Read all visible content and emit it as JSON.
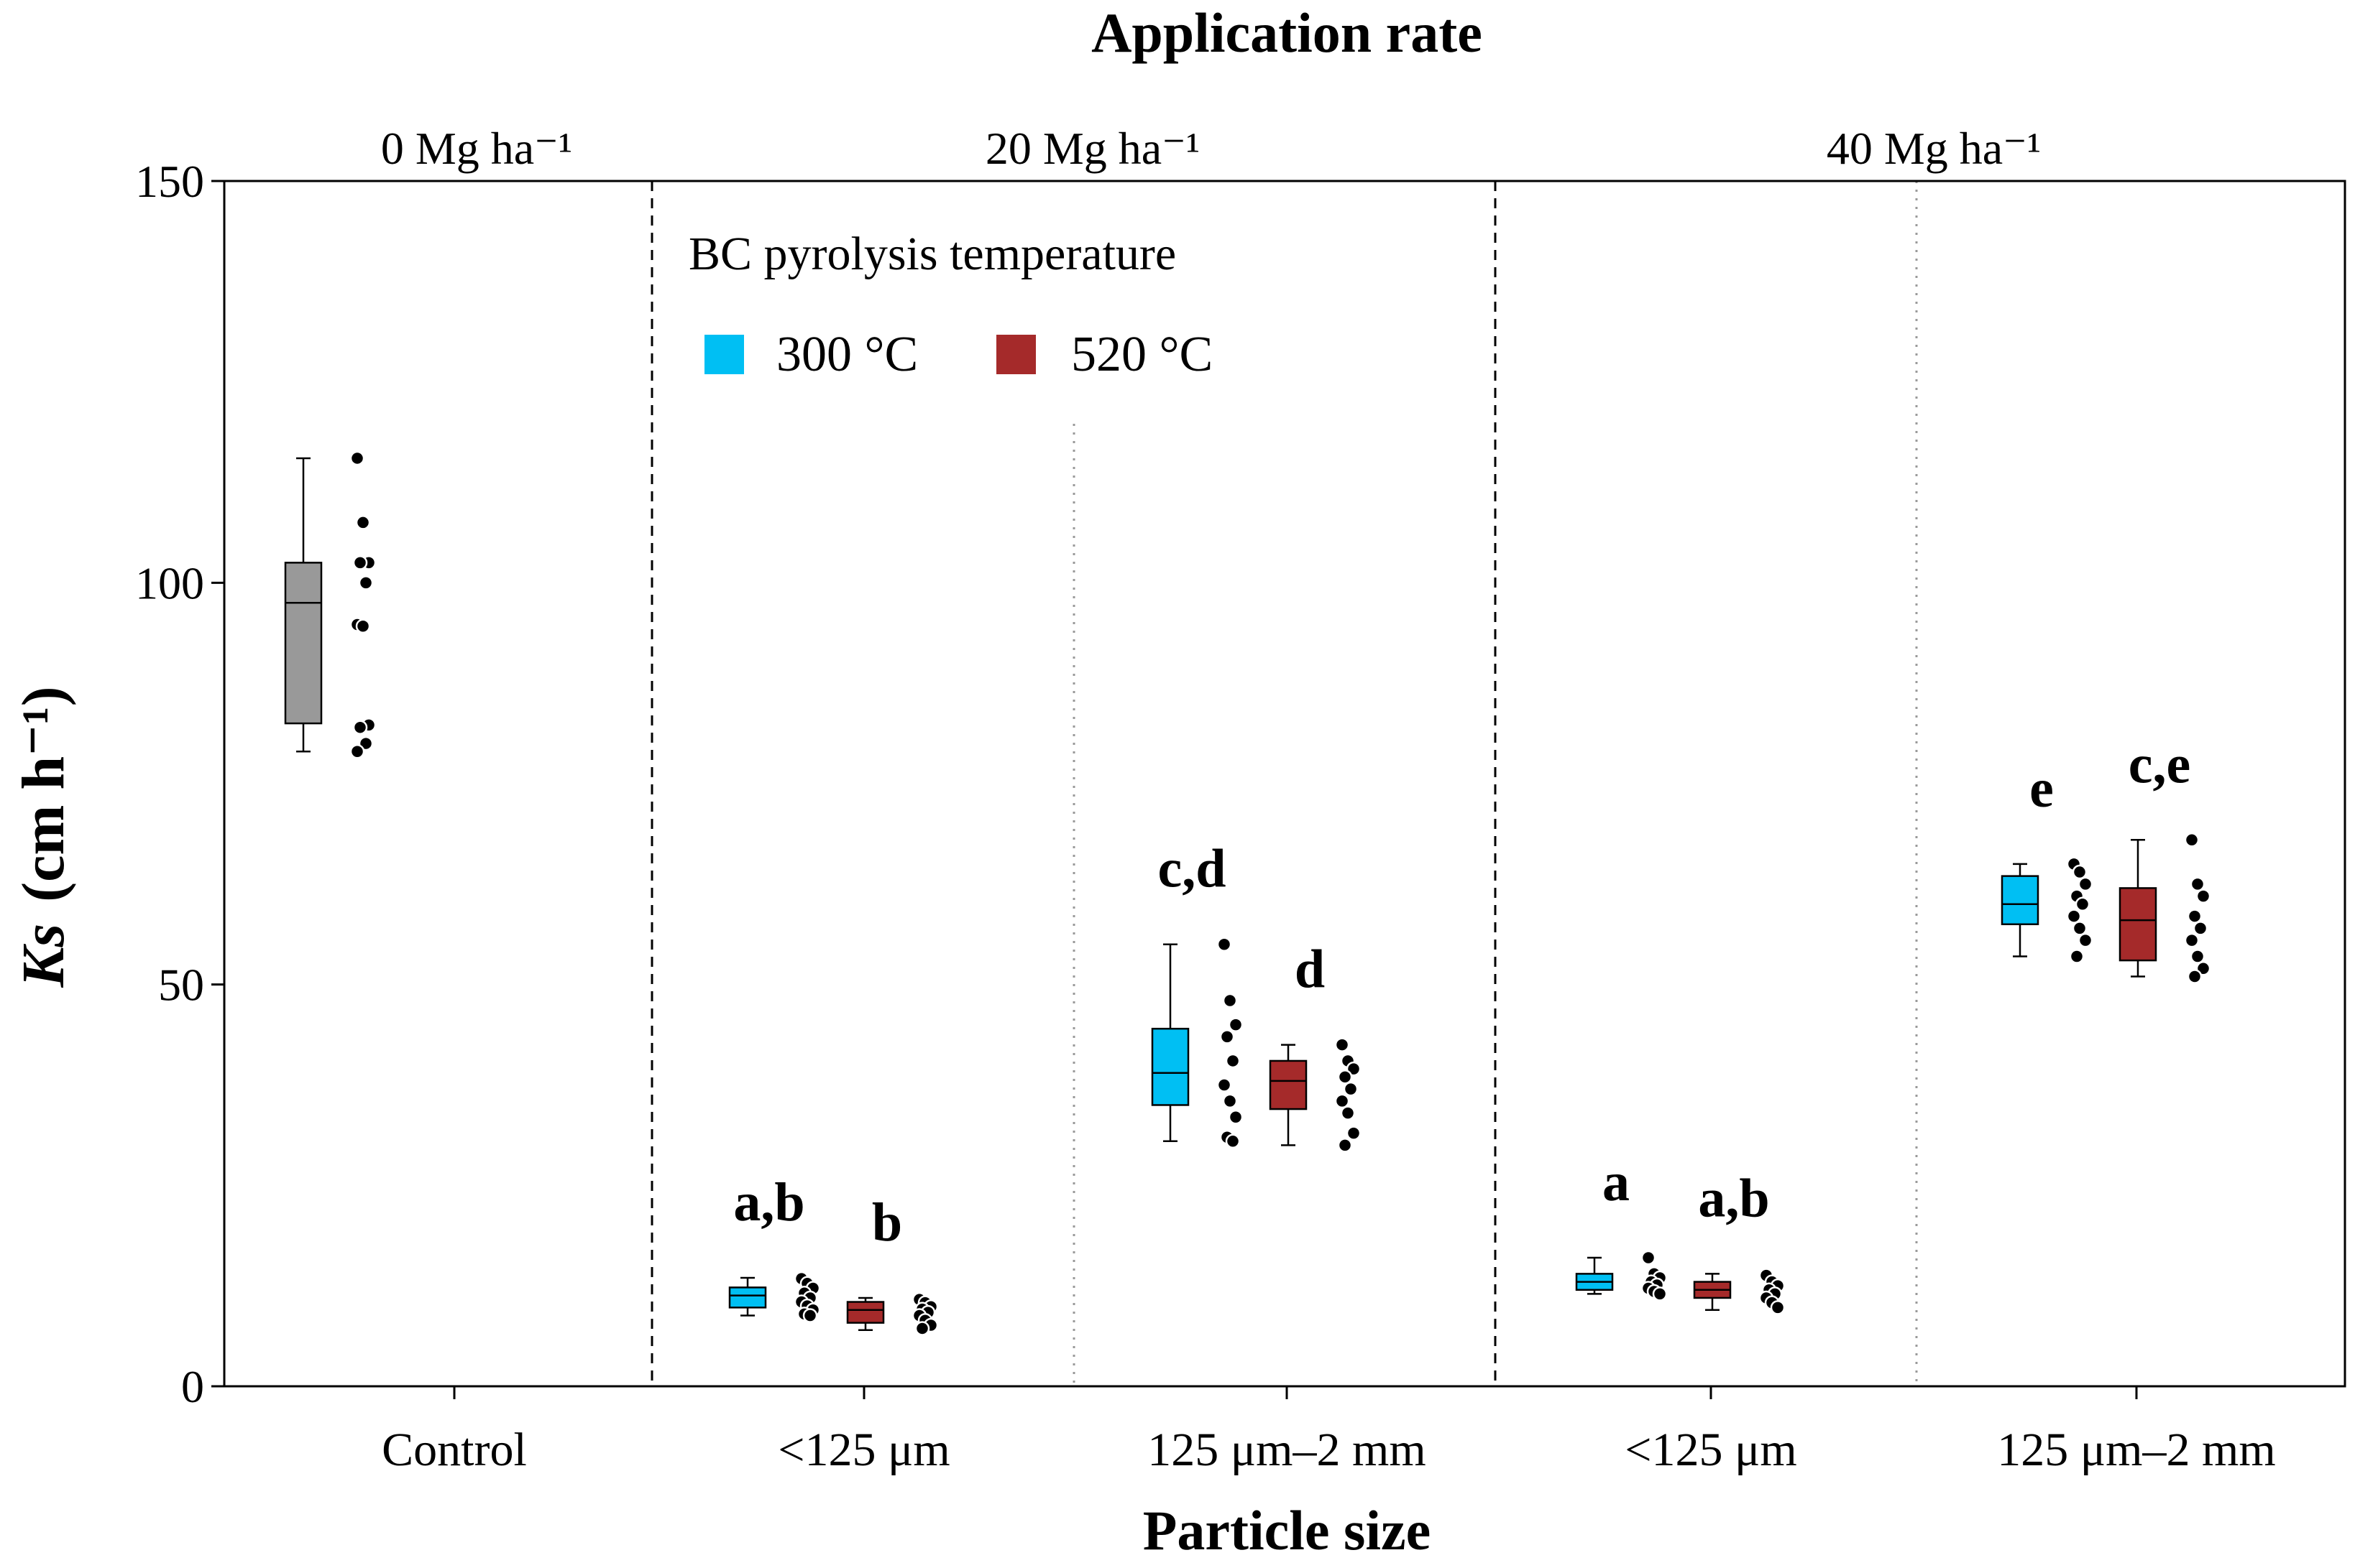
{
  "chart_data": {
    "type": "box",
    "top_title": "Application rate",
    "xlabel": "Particle size",
    "ylabel_italic": "Ks",
    "ylabel_unit": "(cm h⁻¹)",
    "ylim": [
      0,
      150
    ],
    "yticks": [
      0,
      50,
      100,
      150
    ],
    "rate_labels": [
      "0 Mg ha⁻¹",
      "20 Mg ha⁻¹",
      "40 Mg ha⁻¹"
    ],
    "categories": [
      "Control",
      "<125 μm",
      "125 μm–2 mm",
      "<125 μm",
      "125 μm–2 mm"
    ],
    "legend": {
      "title": "BC pyrolysis temperature",
      "entries": [
        {
          "label": "300 °C",
          "color": "#00bff3"
        },
        {
          "label": "520 °C",
          "color": "#a52a2a"
        }
      ]
    },
    "colors": {
      "control": "#999999",
      "t300": "#00bff3",
      "t520": "#a52a2a"
    },
    "boxes": [
      {
        "group": 0,
        "treatment": "control",
        "whisker_low": 79,
        "q1": 82.5,
        "median": 97.5,
        "q3": 102.5,
        "whisker_high": 115.5,
        "letter": "",
        "points": [
          115.5,
          107.5,
          102.5,
          102.5,
          100,
          94.8,
          94.6,
          82.3,
          82,
          80,
          79
        ]
      },
      {
        "group": 1,
        "treatment": "t300",
        "whisker_low": 8.8,
        "q1": 9.8,
        "median": 11.3,
        "q3": 12.3,
        "whisker_high": 13.5,
        "letter": "a,b",
        "points": [
          13.4,
          12.8,
          12.2,
          11.6,
          11.0,
          10.5,
          10.0,
          9.5,
          9.0,
          8.8
        ]
      },
      {
        "group": 1,
        "treatment": "t520",
        "whisker_low": 7.0,
        "q1": 7.9,
        "median": 9.5,
        "q3": 10.5,
        "whisker_high": 11.0,
        "letter": "b",
        "points": [
          10.8,
          10.4,
          9.9,
          9.6,
          9.2,
          8.8,
          8.2,
          7.6,
          7.2
        ]
      },
      {
        "group": 2,
        "treatment": "t300",
        "whisker_low": 30.5,
        "q1": 35.0,
        "median": 39.0,
        "q3": 44.5,
        "whisker_high": 55.0,
        "letter": "c,d",
        "points": [
          55.0,
          48.0,
          45.0,
          43.5,
          40.5,
          37.5,
          35.5,
          33.5,
          31.0,
          30.5
        ]
      },
      {
        "group": 2,
        "treatment": "t520",
        "whisker_low": 30.0,
        "q1": 34.5,
        "median": 38.0,
        "q3": 40.5,
        "whisker_high": 42.5,
        "letter": "d",
        "points": [
          42.5,
          40.5,
          39.5,
          38.5,
          37.0,
          35.5,
          34.0,
          31.5,
          30.0
        ]
      },
      {
        "group": 3,
        "treatment": "t300",
        "whisker_low": 11.5,
        "q1": 12.0,
        "median": 13.0,
        "q3": 14.0,
        "whisker_high": 16.0,
        "letter": "a",
        "points": [
          16.0,
          14.0,
          13.5,
          13.0,
          12.6,
          12.2,
          11.8,
          11.5
        ]
      },
      {
        "group": 3,
        "treatment": "t520",
        "whisker_low": 9.5,
        "q1": 11.0,
        "median": 12.0,
        "q3": 13.0,
        "whisker_high": 14.0,
        "letter": "a,b",
        "points": [
          13.8,
          13.0,
          12.5,
          12.0,
          11.5,
          11.0,
          10.4,
          9.8
        ]
      },
      {
        "group": 4,
        "treatment": "t300",
        "whisker_low": 53.5,
        "q1": 57.5,
        "median": 60.0,
        "q3": 63.5,
        "whisker_high": 65.0,
        "letter": "e",
        "points": [
          65.0,
          64.0,
          62.5,
          61.0,
          60.0,
          58.5,
          57.0,
          55.5,
          53.5
        ]
      },
      {
        "group": 4,
        "treatment": "t520",
        "whisker_low": 51.0,
        "q1": 53.0,
        "median": 58.0,
        "q3": 62.0,
        "whisker_high": 68.0,
        "letter": "c,e",
        "points": [
          68.0,
          62.5,
          61.0,
          58.5,
          57.0,
          55.5,
          53.5,
          52.0,
          51.0
        ]
      }
    ]
  }
}
